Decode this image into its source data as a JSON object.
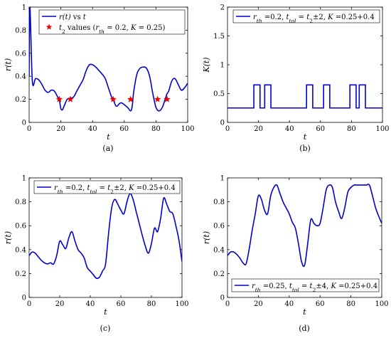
{
  "chart_data": [
    {
      "panel_label": "(a)",
      "type": "line",
      "xlabel": "t",
      "ylabel": "r(t)",
      "xlim": [
        0,
        100
      ],
      "ylim": [
        0,
        1
      ],
      "xticks": [
        "0",
        "20",
        "40",
        "60",
        "80",
        "100"
      ],
      "yticks": [
        "0",
        "0.2",
        "0.4",
        "0.6",
        "0.8",
        "1"
      ],
      "grid": false,
      "legend_position": "top-right",
      "series": [
        {
          "name": "r(t) vs t",
          "type": "line",
          "color": "#0000cc",
          "x": [
            0,
            0.5,
            2,
            4,
            6,
            8,
            10,
            12,
            14,
            16,
            18,
            19,
            20,
            21,
            22,
            24,
            26,
            28,
            30,
            32,
            34,
            36,
            38,
            40,
            42,
            44,
            46,
            48,
            50,
            52,
            53,
            55,
            58,
            62,
            64,
            65,
            66,
            68,
            70,
            72,
            74,
            76,
            78,
            80,
            82,
            84,
            86,
            87,
            88,
            90,
            92,
            94,
            96,
            98,
            100
          ],
          "y": [
            0.4,
            1.0,
            0.36,
            0.38,
            0.37,
            0.33,
            0.28,
            0.26,
            0.28,
            0.27,
            0.22,
            0.2,
            0.12,
            0.11,
            0.14,
            0.2,
            0.21,
            0.22,
            0.27,
            0.32,
            0.37,
            0.45,
            0.5,
            0.5,
            0.48,
            0.45,
            0.42,
            0.38,
            0.3,
            0.22,
            0.2,
            0.14,
            0.17,
            0.13,
            0.1,
            0.14,
            0.27,
            0.42,
            0.47,
            0.48,
            0.47,
            0.4,
            0.25,
            0.13,
            0.1,
            0.13,
            0.21,
            0.25,
            0.27,
            0.36,
            0.38,
            0.33,
            0.28,
            0.3,
            0.34
          ]
        },
        {
          "name": "t₂ values (r_th = 0.2, K = 0.25)",
          "type": "scatter",
          "marker": "star",
          "color": "#ee0000",
          "x": [
            19,
            26,
            53,
            64,
            81,
            87
          ],
          "y": [
            0.2,
            0.2,
            0.2,
            0.2,
            0.2,
            0.2
          ]
        }
      ]
    },
    {
      "panel_label": "(b)",
      "type": "line",
      "xlabel": "t",
      "ylabel": "K(t)",
      "xlim": [
        0,
        100
      ],
      "ylim": [
        0,
        2
      ],
      "xticks": [
        "0",
        "20",
        "40",
        "60",
        "80",
        "100"
      ],
      "yticks": [
        "0",
        "0.5",
        "1",
        "1.5",
        "2"
      ],
      "grid": false,
      "legend_position": "top-right",
      "series": [
        {
          "name": "r_th =0.2, t_tol = t₂±2, K =0.25+0.4",
          "color": "#0000cc",
          "x": [
            0,
            17,
            17,
            21,
            21,
            24,
            24,
            28,
            28,
            51,
            51,
            55,
            55,
            62,
            62,
            66,
            66,
            79,
            79,
            83,
            83,
            85,
            85,
            89,
            89,
            100
          ],
          "y": [
            0.25,
            0.25,
            0.65,
            0.65,
            0.25,
            0.25,
            0.65,
            0.65,
            0.25,
            0.25,
            0.65,
            0.65,
            0.25,
            0.25,
            0.65,
            0.65,
            0.25,
            0.25,
            0.65,
            0.65,
            0.25,
            0.25,
            0.65,
            0.65,
            0.25,
            0.25
          ]
        }
      ]
    },
    {
      "panel_label": "(c)",
      "type": "line",
      "xlabel": "t",
      "ylabel": "r(t)",
      "xlim": [
        0,
        100
      ],
      "ylim": [
        0,
        1
      ],
      "xticks": [
        "0",
        "20",
        "40",
        "60",
        "80",
        "100"
      ],
      "yticks": [
        "0",
        "0.2",
        "0.4",
        "0.6",
        "0.8",
        "1"
      ],
      "grid": false,
      "legend_position": "top-right",
      "series": [
        {
          "name": "r_th =0.2, t_tol = t₂±2, K =0.25+0.4",
          "color": "#0000cc",
          "x": [
            0,
            2,
            4,
            6,
            8,
            10,
            12,
            14,
            16,
            18,
            20,
            22,
            24,
            26,
            28,
            30,
            32,
            34,
            36,
            38,
            40,
            42,
            44,
            46,
            48,
            50,
            52,
            54,
            56,
            58,
            60,
            62,
            64,
            66,
            68,
            70,
            72,
            74,
            76,
            78,
            80,
            82,
            84,
            86,
            88,
            90,
            92,
            94,
            96,
            98,
            100
          ],
          "y": [
            0.35,
            0.38,
            0.37,
            0.34,
            0.31,
            0.29,
            0.28,
            0.29,
            0.28,
            0.35,
            0.47,
            0.44,
            0.41,
            0.5,
            0.55,
            0.47,
            0.4,
            0.37,
            0.33,
            0.25,
            0.22,
            0.19,
            0.16,
            0.17,
            0.22,
            0.28,
            0.54,
            0.75,
            0.82,
            0.78,
            0.73,
            0.7,
            0.8,
            0.87,
            0.82,
            0.72,
            0.62,
            0.52,
            0.43,
            0.37,
            0.45,
            0.58,
            0.55,
            0.66,
            0.83,
            0.78,
            0.72,
            0.7,
            0.6,
            0.48,
            0.3
          ]
        }
      ]
    },
    {
      "panel_label": "(d)",
      "type": "line",
      "xlabel": "t",
      "ylabel": "r(t)",
      "xlim": [
        0,
        100
      ],
      "ylim": [
        0,
        1
      ],
      "xticks": [
        "0",
        "20",
        "40",
        "60",
        "80",
        "100"
      ],
      "yticks": [
        "0",
        "0.2",
        "0.4",
        "0.6",
        "0.8",
        "1"
      ],
      "grid": false,
      "legend_position": "bottom",
      "series": [
        {
          "name": "r_th =0.25, t_tol = t₂±4, K =0.25+0.4",
          "color": "#0000cc",
          "x": [
            0,
            2,
            4,
            6,
            8,
            10,
            12,
            14,
            16,
            18,
            20,
            22,
            24,
            26,
            28,
            30,
            32,
            34,
            36,
            38,
            40,
            42,
            44,
            46,
            48,
            50,
            52,
            54,
            56,
            58,
            60,
            62,
            64,
            66,
            68,
            70,
            72,
            74,
            76,
            78,
            80,
            82,
            84,
            86,
            88,
            90,
            92,
            94,
            96,
            98,
            100
          ],
          "y": [
            0.35,
            0.38,
            0.38,
            0.36,
            0.33,
            0.29,
            0.28,
            0.4,
            0.56,
            0.7,
            0.85,
            0.82,
            0.73,
            0.7,
            0.85,
            0.92,
            0.94,
            0.87,
            0.8,
            0.75,
            0.7,
            0.63,
            0.58,
            0.45,
            0.3,
            0.27,
            0.45,
            0.65,
            0.62,
            0.6,
            0.62,
            0.75,
            0.9,
            0.94,
            0.92,
            0.8,
            0.72,
            0.66,
            0.75,
            0.88,
            0.92,
            0.94,
            0.94,
            0.94,
            0.94,
            0.94,
            0.94,
            0.85,
            0.75,
            0.68,
            0.62
          ]
        }
      ]
    }
  ]
}
